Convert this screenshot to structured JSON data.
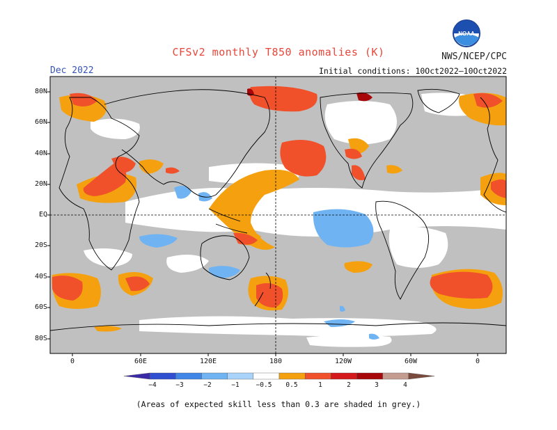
{
  "title": "CFSv2 monthly T850 anomalies (K)",
  "agency": "NWS/NCEP/CPC",
  "period": "Dec 2022",
  "init_conditions": "Initial conditions: 10Oct2022–10Oct2022",
  "footnote": "(Areas of expected skill less than 0.3 are shaded in grey.)",
  "logo_text": "NOAA",
  "lat_ticks": [
    "80N",
    "60N",
    "40N",
    "20N",
    "EQ",
    "20S",
    "40S",
    "60S",
    "80S"
  ],
  "lon_ticks": [
    "0",
    "60E",
    "120E",
    "180",
    "120W",
    "60W",
    "0"
  ],
  "colorbar": {
    "labels": [
      "−4",
      "−3",
      "−2",
      "−1",
      "−0.5",
      "0.5",
      "1",
      "2",
      "3",
      "4"
    ],
    "colors": [
      "#3a2aa8",
      "#2f4fd0",
      "#3f86e6",
      "#6fb3f2",
      "#a9d3fa",
      "#ffffff",
      "#f5a10f",
      "#f0512b",
      "#d3191c",
      "#a8070a",
      "#c39b8f",
      "#7a4a3c"
    ]
  },
  "colors": {
    "skill_mask": "#c0c0c0",
    "warm_weak": "#f5a10f",
    "warm_mid": "#f0512b",
    "warm_strong": "#a8070a",
    "cool_weak": "#6fb3f2",
    "coast": "#000000"
  },
  "icons": {
    "logo": "noaa-logo-icon"
  }
}
